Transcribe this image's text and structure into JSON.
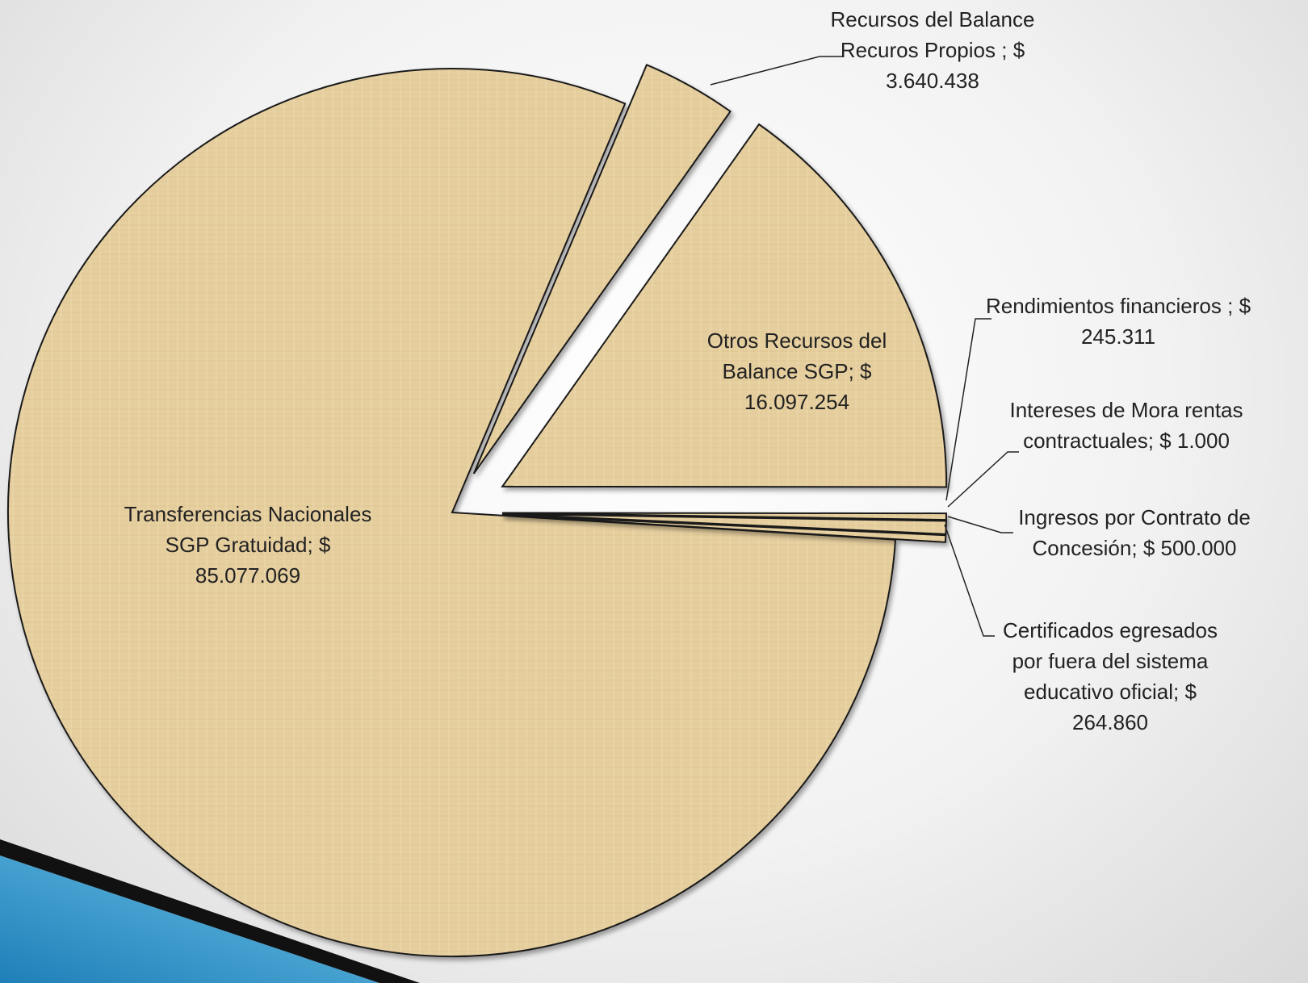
{
  "chart_data": {
    "type": "pie",
    "categories": [
      "Transferencias Nacionales SGP Gratuidad;",
      "Recursos del Balance Recuros Propios ;",
      "Otros Recursos del Balance SGP;",
      "Rendimientos financieros ;",
      "Intereses de Mora rentas contractuales;",
      "Ingresos por Contrato de Concesión;",
      "Certificados egresados por fuera del sistema educativo oficial;"
    ],
    "values": [
      85077069,
      3640438,
      16097254,
      245311,
      1000,
      500000,
      264860
    ],
    "value_labels": [
      "$ 85.077.069",
      "$ 3.640.438",
      "$ 16.097.254",
      "$ 245.311",
      "$ 1.000",
      "$ 500.000",
      "$ 264.860"
    ],
    "color": "#e6cf9f"
  }
}
